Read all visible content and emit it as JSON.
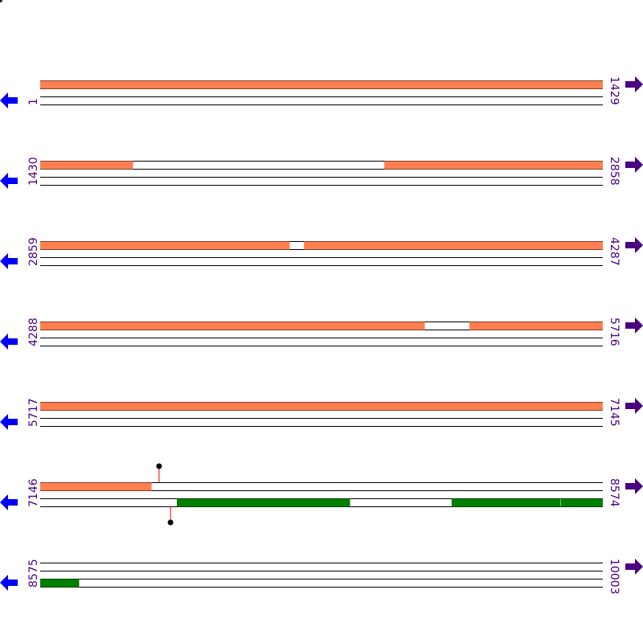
{
  "colors": {
    "top_feature": "#FF7F50",
    "bottom_feature": "#008000",
    "label": "#4B0082",
    "left_arrow": "#0000FF",
    "right_arrow": "#4B0082",
    "marker_stem": "#FF0000",
    "marker_head": "#000000"
  },
  "icons": {
    "left": "arrow-left-icon",
    "right": "arrow-right-icon"
  },
  "bp_per_row": 1429,
  "rows": [
    {
      "start": "1",
      "end": "1429"
    },
    {
      "start": "1430",
      "end": "2858"
    },
    {
      "start": "2859",
      "end": "4287"
    },
    {
      "start": "4288",
      "end": "5716"
    },
    {
      "start": "5717",
      "end": "7145"
    },
    {
      "start": "7146",
      "end": "8574"
    },
    {
      "start": "8575",
      "end": "10003"
    }
  ],
  "features": [
    {
      "strand": "top",
      "from": 1,
      "to": 1429
    },
    {
      "strand": "top",
      "from": 1430,
      "to": 1665
    },
    {
      "strand": "top",
      "from": 2304,
      "to": 2858
    },
    {
      "strand": "top",
      "from": 2859,
      "to": 3492
    },
    {
      "strand": "top",
      "from": 3529,
      "to": 4287
    },
    {
      "strand": "top",
      "from": 4288,
      "to": 5264
    },
    {
      "strand": "top",
      "from": 5378,
      "to": 5716
    },
    {
      "strand": "top",
      "from": 5717,
      "to": 7145
    },
    {
      "strand": "top",
      "from": 7146,
      "to": 7428
    },
    {
      "strand": "bottom",
      "from": 7493,
      "to": 7932
    },
    {
      "strand": "bottom",
      "from": 8191,
      "to": 8466
    },
    {
      "strand": "bottom",
      "from": 8468,
      "to": 8574
    },
    {
      "strand": "bottom",
      "from": 8575,
      "to": 8673
    }
  ],
  "markers": [
    {
      "strand": "top",
      "position": 7448
    },
    {
      "strand": "bottom",
      "position": 7477
    }
  ]
}
